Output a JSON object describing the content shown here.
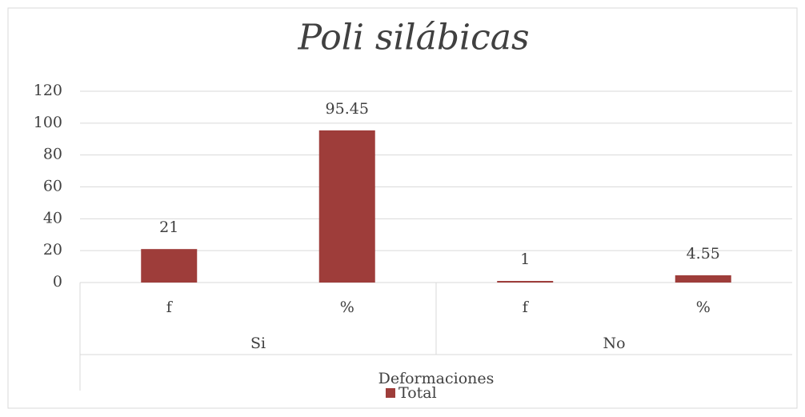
{
  "chart_data": {
    "type": "bar",
    "title": "Poli silábicas",
    "categories": [
      "f",
      "%",
      "f",
      "%"
    ],
    "groups": [
      {
        "name": "Si",
        "span": 2
      },
      {
        "name": "No",
        "span": 2
      }
    ],
    "x_label": "Deformaciones",
    "series": [
      {
        "name": "Total",
        "color": "#9e3d3a",
        "values": [
          21,
          95.45,
          1,
          4.55
        ]
      }
    ],
    "ylim": [
      0,
      120
    ],
    "yticks": [
      0,
      20,
      40,
      60,
      80,
      100,
      120
    ],
    "grid": true,
    "legend": "bottom"
  }
}
